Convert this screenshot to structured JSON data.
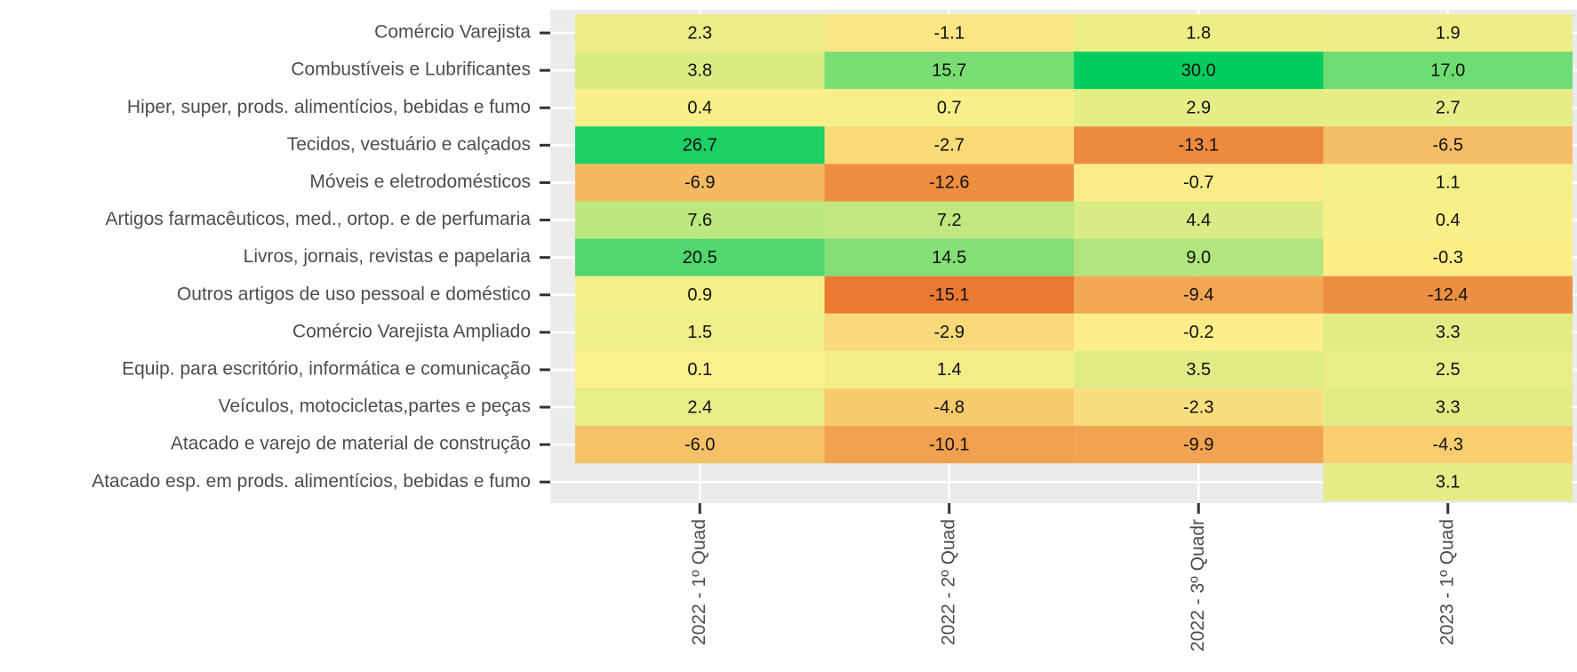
{
  "chart_data": {
    "type": "heatmap",
    "x": [
      "2022 - 1º Quad",
      "2022 - 2º Quad",
      "2022 - 3º Quadr",
      "2023 - 1º Quad"
    ],
    "y": [
      "Comércio Varejista",
      "Combustíveis e Lubrificantes",
      "Hiper, super, prods.  alimentícios, bebidas e fumo",
      "Tecidos, vestuário e calçados",
      "Móveis e eletrodomésticos",
      "Artigos farmacêuticos, med., ortop. e de perfumaria",
      "Livros, jornais, revistas e papelaria",
      "Outros artigos de uso pessoal e doméstico",
      "Comércio Varejista Ampliado",
      "Equip. para escritório, informática e comunicação",
      "Veículos, motocicletas,partes e peças",
      "Atacado e varejo de material de construção",
      "Atacado esp. em prods. alimentícios, bebidas e fumo"
    ],
    "values": [
      [
        2.3,
        -1.1,
        1.8,
        1.9
      ],
      [
        3.8,
        15.7,
        30.0,
        17.0
      ],
      [
        0.4,
        0.7,
        2.9,
        2.7
      ],
      [
        26.7,
        -2.7,
        -13.1,
        -6.5
      ],
      [
        -6.9,
        -12.6,
        -0.7,
        1.1
      ],
      [
        7.6,
        7.2,
        4.4,
        0.4
      ],
      [
        20.5,
        14.5,
        9.0,
        -0.3
      ],
      [
        0.9,
        -15.1,
        -9.4,
        -12.4
      ],
      [
        1.5,
        -2.9,
        -0.2,
        3.3
      ],
      [
        0.1,
        1.4,
        3.5,
        2.5
      ],
      [
        2.4,
        -4.8,
        -2.3,
        3.3
      ],
      [
        -6.0,
        -10.1,
        -9.9,
        -4.3
      ],
      [
        null,
        null,
        null,
        3.1
      ]
    ],
    "value_labels": [
      [
        "2.3",
        "-1.1",
        "1.8",
        "1.9"
      ],
      [
        "3.8",
        "15.7",
        "30.0",
        "17.0"
      ],
      [
        "0.4",
        "0.7",
        "2.9",
        "2.7"
      ],
      [
        "26.7",
        "-2.7",
        "-13.1",
        "-6.5"
      ],
      [
        "-6.9",
        "-12.6",
        "-0.7",
        "1.1"
      ],
      [
        "7.6",
        "7.2",
        "4.4",
        "0.4"
      ],
      [
        "20.5",
        "14.5",
        "9.0",
        "-0.3"
      ],
      [
        "0.9",
        "-15.1",
        "-9.4",
        "-12.4"
      ],
      [
        "1.5",
        "-2.9",
        "-0.2",
        "3.3"
      ],
      [
        "0.1",
        "1.4",
        "3.5",
        "2.5"
      ],
      [
        "2.4",
        "-4.8",
        "-2.3",
        "3.3"
      ],
      [
        "-6.0",
        "-10.1",
        "-9.9",
        "-4.3"
      ],
      [
        null,
        null,
        null,
        "3.1"
      ]
    ],
    "colors": [
      "#ea7a33",
      "#fdf08a",
      "#00cc60"
    ],
    "grid": true
  }
}
